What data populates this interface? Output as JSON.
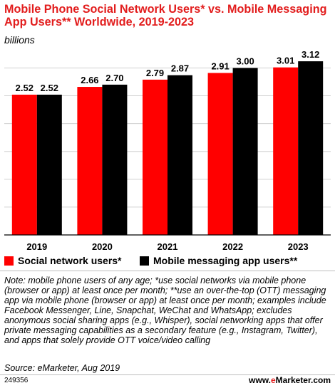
{
  "header": {
    "title": "Mobile Phone Social Network Users* vs. Mobile Messaging App Users** Worldwide, 2019-2023",
    "subtitle": "billions"
  },
  "chart_data": {
    "type": "bar",
    "title": "Mobile Phone Social Network Users* vs. Mobile Messaging App Users** Worldwide, 2019-2023",
    "subtitle": "billions",
    "categories": [
      "2019",
      "2020",
      "2021",
      "2022",
      "2023"
    ],
    "series": [
      {
        "name": "Social network users*",
        "color": "#ff0000",
        "values": [
          2.52,
          2.66,
          2.79,
          2.91,
          3.01
        ],
        "labels": [
          "2.52",
          "2.66",
          "2.79",
          "2.91",
          "3.01"
        ]
      },
      {
        "name": "Mobile messaging app users**",
        "color": "#000000",
        "values": [
          2.52,
          2.7,
          2.87,
          3.0,
          3.12
        ],
        "labels": [
          "2.52",
          "2.70",
          "2.87",
          "3.00",
          "3.12"
        ]
      }
    ],
    "ylim": [
      0,
      3.3
    ],
    "grid": true,
    "legend": "bottom"
  },
  "legend": {
    "items": [
      {
        "label": "Social network users*",
        "color": "#ff0000"
      },
      {
        "label": "Mobile messaging app users**",
        "color": "#000000"
      }
    ]
  },
  "footer": {
    "note": "Note: mobile phone users of any age; *use social networks via mobile phone (browser or app) at least once per month; **use an over-the-top (OTT) messaging app via mobile phone (browser or app) at least once per month; examples include Facebook Messenger, Line, Snapchat, WeChat and WhatsApp; excludes anonymous social sharing apps (e.g., Whisper), social networking apps that offer private messaging capabilities as a secondary feature (e.g., Instagram, Twitter), and apps that solely provide OTT voice/video calling",
    "source": "Source: eMarketer, Aug 2019",
    "id": "249356",
    "brand_prefix": "www.",
    "brand_e": "e",
    "brand_suffix": "Marketer.com"
  }
}
